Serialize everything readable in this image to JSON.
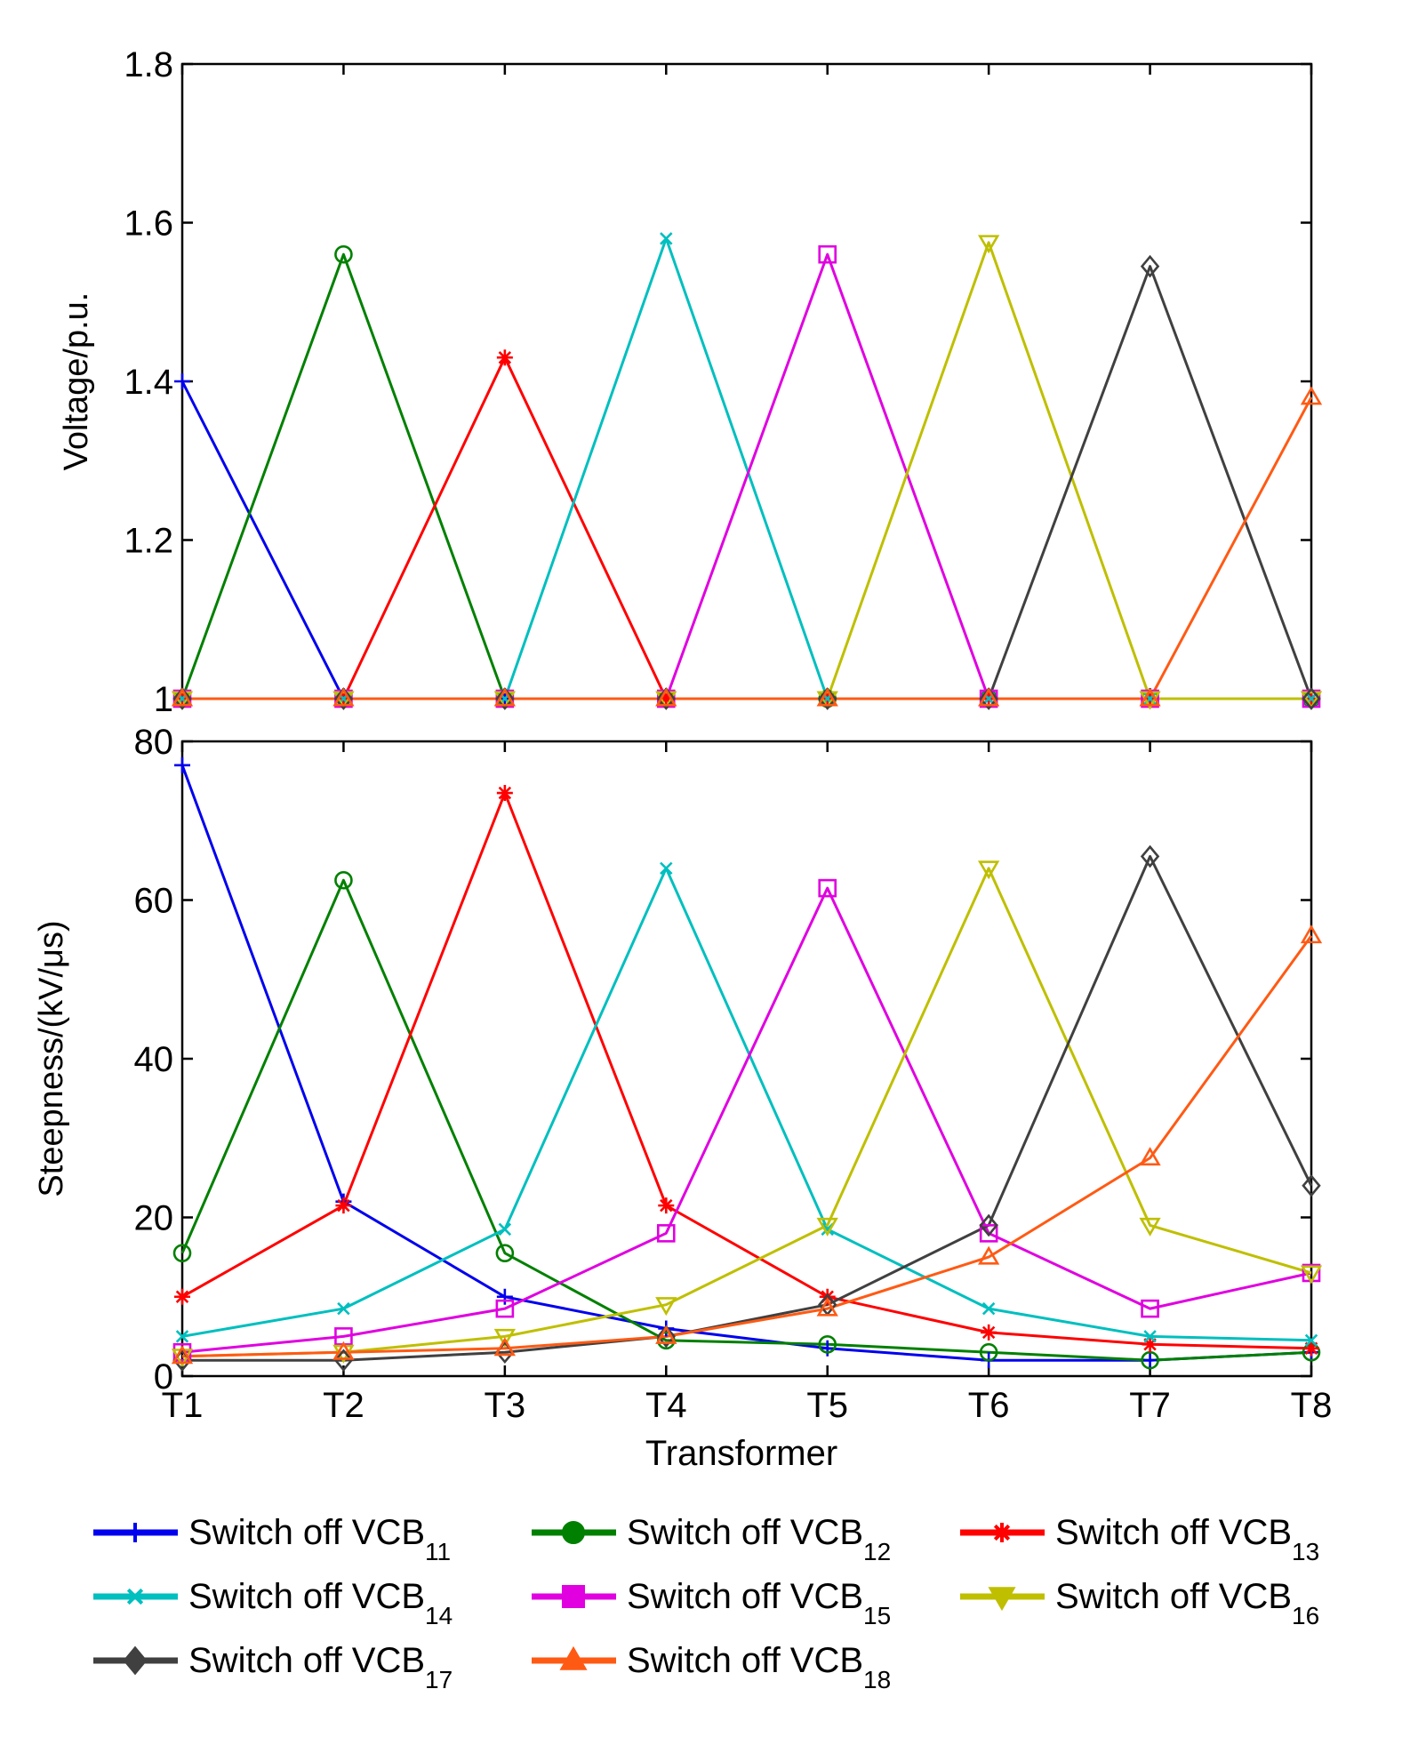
{
  "chart_data": [
    {
      "type": "line",
      "id": "voltage",
      "title": "",
      "xlabel": "",
      "ylabel": "Voltage/p.u.",
      "categories": [
        "T1",
        "T2",
        "T3",
        "T4",
        "T5",
        "T6",
        "T7",
        "T8"
      ],
      "show_xticklabels": false,
      "ylim": [
        1.0,
        1.8
      ],
      "yticks": [
        1.0,
        1.2,
        1.4,
        1.6,
        1.8
      ],
      "ytick_labels": [
        "1",
        "1.2",
        "1.4",
        "1.6",
        "1.8"
      ],
      "grid": false,
      "series": [
        {
          "name": "Switch off VCB",
          "sub": "11",
          "values": [
            1.4,
            1.0,
            1.0,
            1.0,
            1.0,
            1.0,
            1.0,
            1.0
          ]
        },
        {
          "name": "Switch off VCB",
          "sub": "12",
          "values": [
            1.0,
            1.56,
            1.0,
            1.0,
            1.0,
            1.0,
            1.0,
            1.0
          ]
        },
        {
          "name": "Switch off VCB",
          "sub": "13",
          "values": [
            1.0,
            1.0,
            1.43,
            1.0,
            1.0,
            1.0,
            1.0,
            1.0
          ]
        },
        {
          "name": "Switch off VCB",
          "sub": "14",
          "values": [
            1.0,
            1.0,
            1.0,
            1.58,
            1.0,
            1.0,
            1.0,
            1.0
          ]
        },
        {
          "name": "Switch off VCB",
          "sub": "15",
          "values": [
            1.0,
            1.0,
            1.0,
            1.0,
            1.56,
            1.0,
            1.0,
            1.0
          ]
        },
        {
          "name": "Switch off VCB",
          "sub": "16",
          "values": [
            1.0,
            1.0,
            1.0,
            1.0,
            1.0,
            1.575,
            1.0,
            1.0
          ]
        },
        {
          "name": "Switch off VCB",
          "sub": "17",
          "values": [
            1.0,
            1.0,
            1.0,
            1.0,
            1.0,
            1.0,
            1.545,
            1.0
          ]
        },
        {
          "name": "Switch off VCB",
          "sub": "18",
          "values": [
            1.0,
            1.0,
            1.0,
            1.0,
            1.0,
            1.0,
            1.0,
            1.38
          ]
        }
      ]
    },
    {
      "type": "line",
      "id": "steepness",
      "title": "",
      "xlabel": "Transformer",
      "ylabel": "Steepness/(kV/μs)",
      "categories": [
        "T1",
        "T2",
        "T3",
        "T4",
        "T5",
        "T6",
        "T7",
        "T8"
      ],
      "show_xticklabels": true,
      "ylim": [
        0,
        80
      ],
      "yticks": [
        0,
        20,
        40,
        60,
        80
      ],
      "ytick_labels": [
        "0",
        "20",
        "40",
        "60",
        "80"
      ],
      "grid": false,
      "series": [
        {
          "name": "Switch off VCB",
          "sub": "11",
          "values": [
            77,
            22,
            10,
            6,
            3.5,
            2,
            2,
            3
          ]
        },
        {
          "name": "Switch off VCB",
          "sub": "12",
          "values": [
            15.5,
            62.5,
            15.5,
            4.5,
            4,
            3,
            2,
            3
          ]
        },
        {
          "name": "Switch off VCB",
          "sub": "13",
          "values": [
            10,
            21.5,
            73.5,
            21.5,
            10,
            5.5,
            4,
            3.5
          ]
        },
        {
          "name": "Switch off VCB",
          "sub": "14",
          "values": [
            5,
            8.5,
            18.5,
            64,
            18.5,
            8.5,
            5,
            4.5
          ]
        },
        {
          "name": "Switch off VCB",
          "sub": "15",
          "values": [
            3,
            5,
            8.5,
            18,
            61.5,
            18,
            8.5,
            13
          ]
        },
        {
          "name": "Switch off VCB",
          "sub": "16",
          "values": [
            2.5,
            3,
            5,
            9,
            19,
            64,
            19,
            13
          ]
        },
        {
          "name": "Switch off VCB",
          "sub": "17",
          "values": [
            2,
            2,
            3,
            5,
            9,
            19,
            65.5,
            24
          ]
        },
        {
          "name": "Switch off VCB",
          "sub": "18",
          "values": [
            2.5,
            3,
            3.5,
            5,
            8.5,
            15,
            27.5,
            55.5
          ]
        }
      ]
    }
  ],
  "colors": [
    "#0000ee",
    "#008000",
    "#ff0000",
    "#00bfbf",
    "#e000e0",
    "#bfbf00",
    "#404040",
    "#ff5a14"
  ],
  "markers": [
    "plus",
    "circle",
    "star",
    "x",
    "square",
    "triangle-down",
    "diamond",
    "triangle-up"
  ],
  "legend": {
    "placement": "bottom",
    "columns": 3
  }
}
